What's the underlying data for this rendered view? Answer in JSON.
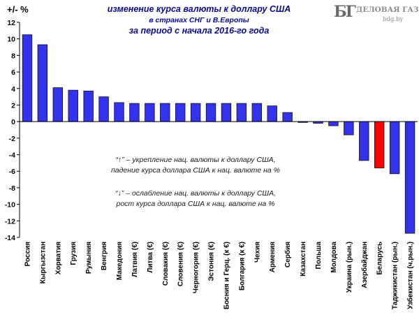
{
  "header": {
    "ylabel": "+/- %",
    "title_line1": "изменение  курса валюты к доллару США",
    "title_line2": "в странах СНГ и В.Европы",
    "title_line3": "за период с начала 2016-го года"
  },
  "logo": {
    "mark": "БГ",
    "name": "ДЕЛОВАЯ ГАЗЕТА",
    "site": "bdg.by"
  },
  "notes": {
    "up_line1": "“↑” – укрепление нац. валюты к доллару США,",
    "up_line2": "падение курса доллара США к нац. валюте на %",
    "down_line1": "“↓” – ослабление нац. валюты к доллару США,",
    "down_line2": "рост курса доллара США к нац. валюте на %"
  },
  "colors": {
    "bar": "#3333ee",
    "highlight": "#ff0000",
    "title": "#0a0a8a"
  },
  "chart_data": {
    "type": "bar",
    "title": "изменение  курса валюты к доллару США в странах СНГ и В.Европы за период с начала 2016-го года",
    "ylabel": "+/- %",
    "xlabel": "",
    "ylim": [
      -14,
      12
    ],
    "yticks": [
      -14,
      -12,
      -10,
      -8,
      -6,
      -4,
      -2,
      0,
      2,
      4,
      6,
      8,
      10,
      12
    ],
    "grid": false,
    "categories": [
      "Россия",
      "Кыргызстан",
      "Хорватия",
      "Грузия",
      "Румыния",
      "Венгрия",
      "Македония",
      "Латвия (€)",
      "Литва (€)",
      "Словакия (€)",
      "Словения (€)",
      "Черногория (€)",
      "Эстония (€)",
      "Босния и Герц. (к €)",
      "Болгария (к €)",
      "Чехия",
      "Армения",
      "Сербия",
      "Казахстан",
      "Польша",
      "Молдова",
      "Украина (рын.)",
      "Азербайджан",
      "Беларусь",
      "Таджикистан (рын.)",
      "Узбекистан (ч.рын.)"
    ],
    "values": [
      10.5,
      9.3,
      4.1,
      3.8,
      3.7,
      3.0,
      2.3,
      2.2,
      2.2,
      2.2,
      2.2,
      2.2,
      2.2,
      2.2,
      2.2,
      2.2,
      1.9,
      1.1,
      -0.1,
      -0.2,
      -0.5,
      -1.6,
      -4.7,
      -5.6,
      -6.3,
      -13.5
    ],
    "highlight_category": "Беларусь"
  }
}
